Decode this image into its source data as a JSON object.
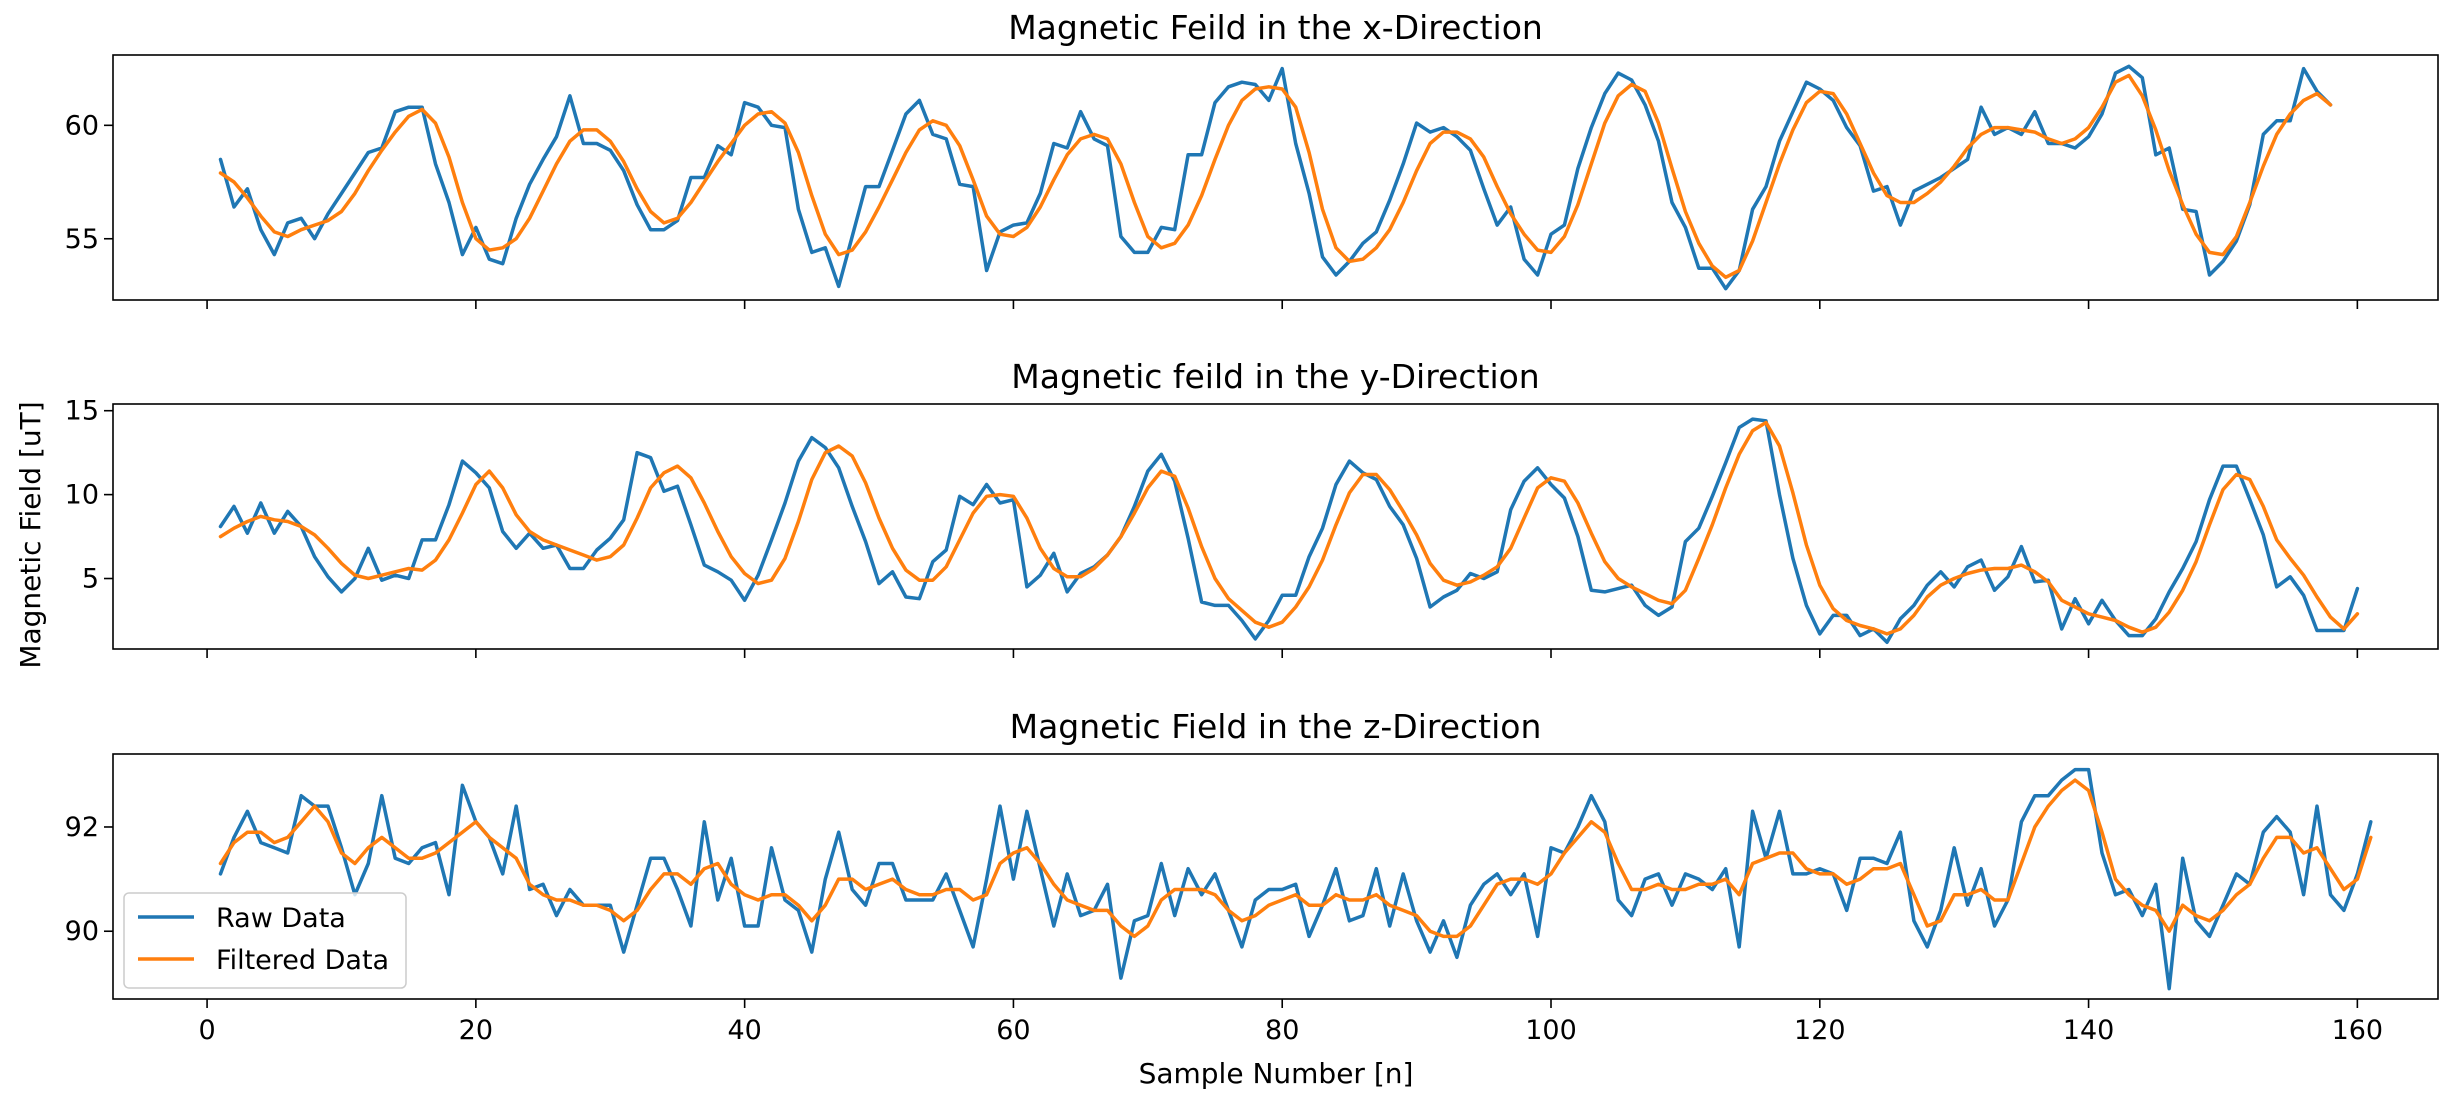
{
  "figure": {
    "ylabel": "Magnetic Field [uT]",
    "xlabel": "Sample Number [n]",
    "raw_color": "#1f77b4",
    "filtered_color": "#ff7f0e"
  },
  "legend": {
    "location": "lower-left of bottom panel",
    "entries": [
      "Raw Data",
      "Filtered Data"
    ]
  },
  "chart_data": [
    {
      "type": "line",
      "title": "Magnetic Feild in the x-Direction",
      "xlim": [
        -7,
        166
      ],
      "ylim": [
        52.3,
        63.1
      ],
      "xticks": [
        0,
        20,
        40,
        60,
        80,
        100,
        120,
        140,
        160
      ],
      "xtick_labels": [
        "",
        "",
        "",
        "",
        "",
        "",
        "",
        "",
        ""
      ],
      "yticks": [
        55,
        60
      ],
      "ytick_labels": [
        "55",
        "60"
      ],
      "x_start": 1,
      "series": [
        {
          "name": "Raw Data",
          "color": "#1f77b4",
          "values": [
            58.5,
            56.4,
            57.2,
            55.4,
            54.3,
            55.7,
            55.9,
            55.0,
            56.1,
            57.0,
            57.9,
            58.8,
            59.0,
            60.6,
            60.8,
            60.8,
            58.3,
            56.6,
            54.3,
            55.5,
            54.1,
            53.9,
            55.9,
            57.4,
            58.5,
            59.5,
            61.3,
            59.2,
            59.2,
            58.9,
            58.0,
            56.5,
            55.4,
            55.4,
            55.8,
            57.7,
            57.7,
            59.1,
            58.7,
            61.0,
            60.8,
            60.0,
            59.9,
            56.3,
            54.4,
            54.6,
            52.9,
            55.1,
            57.3,
            57.3,
            58.9,
            60.5,
            61.1,
            59.6,
            59.4,
            57.4,
            57.3,
            53.6,
            55.3,
            55.6,
            55.7,
            57.0,
            59.2,
            59.0,
            60.6,
            59.4,
            59.1,
            55.1,
            54.4,
            54.4,
            55.5,
            55.4,
            58.7,
            58.7,
            61.0,
            61.7,
            61.9,
            61.8,
            61.1,
            62.5,
            59.2,
            57.0,
            54.2,
            53.4,
            54.0,
            54.8,
            55.3,
            56.7,
            58.3,
            60.1,
            59.7,
            59.9,
            59.5,
            58.9,
            57.2,
            55.6,
            56.4,
            54.1,
            53.4,
            55.2,
            55.6,
            58.1,
            59.9,
            61.4,
            62.3,
            62.0,
            60.9,
            59.3,
            56.6,
            55.5,
            53.7,
            53.7,
            52.8,
            53.6,
            56.3,
            57.3,
            59.3,
            60.6,
            61.9,
            61.6,
            61.1,
            59.9,
            59.1,
            57.1,
            57.3,
            55.6,
            57.1,
            57.4,
            57.7,
            58.1,
            58.5,
            60.8,
            59.6,
            59.9,
            59.6,
            60.6,
            59.2,
            59.2,
            59.0,
            59.5,
            60.5,
            62.3,
            62.6,
            62.1,
            58.7,
            59.0,
            56.3,
            56.2,
            53.4,
            54.0,
            54.9,
            56.5,
            59.6,
            60.2,
            60.2,
            62.5,
            61.5,
            60.9
          ]
        },
        {
          "name": "Filtered Data",
          "color": "#ff7f0e",
          "values": [
            57.9,
            57.5,
            56.8,
            56.0,
            55.3,
            55.1,
            55.4,
            55.6,
            55.8,
            56.2,
            57.0,
            58.0,
            58.9,
            59.7,
            60.4,
            60.7,
            60.1,
            58.6,
            56.6,
            55.0,
            54.5,
            54.6,
            55.0,
            55.9,
            57.1,
            58.3,
            59.3,
            59.8,
            59.8,
            59.3,
            58.4,
            57.2,
            56.2,
            55.7,
            55.9,
            56.6,
            57.5,
            58.4,
            59.2,
            60.0,
            60.5,
            60.6,
            60.1,
            58.8,
            56.9,
            55.2,
            54.3,
            54.5,
            55.3,
            56.4,
            57.6,
            58.8,
            59.8,
            60.2,
            60.0,
            59.1,
            57.6,
            56.0,
            55.2,
            55.1,
            55.5,
            56.4,
            57.6,
            58.7,
            59.4,
            59.6,
            59.4,
            58.3,
            56.6,
            55.1,
            54.6,
            54.8,
            55.6,
            56.9,
            58.5,
            60.0,
            61.1,
            61.6,
            61.7,
            61.6,
            60.8,
            58.8,
            56.3,
            54.6,
            54.0,
            54.1,
            54.6,
            55.4,
            56.6,
            58.0,
            59.2,
            59.7,
            59.7,
            59.4,
            58.6,
            57.3,
            56.1,
            55.2,
            54.5,
            54.4,
            55.1,
            56.5,
            58.3,
            60.1,
            61.3,
            61.8,
            61.5,
            60.1,
            58.1,
            56.2,
            54.8,
            53.8,
            53.3,
            53.6,
            54.9,
            56.6,
            58.3,
            59.8,
            61.0,
            61.5,
            61.4,
            60.5,
            59.2,
            57.9,
            56.9,
            56.6,
            56.6,
            57.0,
            57.5,
            58.2,
            59.0,
            59.6,
            59.9,
            59.9,
            59.8,
            59.7,
            59.4,
            59.2,
            59.4,
            59.9,
            60.8,
            61.9,
            62.2,
            61.3,
            59.8,
            58.0,
            56.5,
            55.2,
            54.4,
            54.3,
            55.1,
            56.6,
            58.2,
            59.6,
            60.5,
            61.1,
            61.4,
            60.9
          ]
        }
      ]
    },
    {
      "type": "line",
      "title": "Magnetic feild in the y-Direction",
      "xlim": [
        -7,
        166
      ],
      "ylim": [
        0.8,
        15.4
      ],
      "xticks": [
        0,
        20,
        40,
        60,
        80,
        100,
        120,
        140,
        160
      ],
      "xtick_labels": [
        "",
        "",
        "",
        "",
        "",
        "",
        "",
        "",
        ""
      ],
      "yticks": [
        5,
        10,
        15
      ],
      "ytick_labels": [
        "5",
        "10",
        "15"
      ],
      "x_start": 1,
      "series": [
        {
          "name": "Raw Data",
          "color": "#1f77b4",
          "values": [
            8.1,
            9.3,
            7.7,
            9.5,
            7.7,
            9.0,
            8.1,
            6.3,
            5.1,
            4.2,
            5.0,
            6.8,
            4.9,
            5.2,
            5.0,
            7.3,
            7.3,
            9.4,
            12.0,
            11.3,
            10.4,
            7.8,
            6.8,
            7.7,
            6.8,
            7.0,
            5.6,
            5.6,
            6.7,
            7.4,
            8.5,
            12.5,
            12.2,
            10.2,
            10.5,
            8.2,
            5.8,
            5.4,
            4.9,
            3.7,
            5.2,
            7.3,
            9.5,
            12.0,
            13.4,
            12.8,
            11.6,
            9.3,
            7.2,
            4.7,
            5.4,
            3.9,
            3.8,
            6.0,
            6.7,
            9.9,
            9.4,
            10.6,
            9.5,
            9.7,
            4.5,
            5.2,
            6.5,
            4.2,
            5.3,
            5.7,
            6.4,
            7.5,
            9.3,
            11.4,
            12.4,
            10.8,
            7.4,
            3.6,
            3.4,
            3.4,
            2.5,
            1.4,
            2.5,
            4.0,
            4.0,
            6.3,
            8.0,
            10.6,
            12.0,
            11.3,
            10.9,
            9.3,
            8.2,
            6.2,
            3.3,
            3.9,
            4.3,
            5.3,
            5.0,
            5.4,
            9.1,
            10.8,
            11.6,
            10.6,
            9.8,
            7.5,
            4.3,
            4.2,
            4.4,
            4.6,
            3.4,
            2.8,
            3.3,
            7.2,
            8.0,
            9.9,
            11.9,
            14.0,
            14.5,
            14.4,
            10.0,
            6.2,
            3.4,
            1.7,
            2.8,
            2.8,
            1.6,
            2.0,
            1.2,
            2.6,
            3.4,
            4.6,
            5.4,
            4.5,
            5.7,
            6.1,
            4.3,
            5.1,
            6.9,
            4.8,
            4.9,
            2.0,
            3.8,
            2.3,
            3.7,
            2.5,
            1.6,
            1.6,
            2.6,
            4.2,
            5.6,
            7.2,
            9.7,
            11.7,
            11.7,
            9.7,
            7.6,
            4.5,
            5.1,
            4.0,
            1.9,
            1.9,
            1.9,
            4.4
          ]
        },
        {
          "name": "Filtered Data",
          "color": "#ff7f0e",
          "values": [
            7.5,
            8.0,
            8.4,
            8.7,
            8.5,
            8.4,
            8.1,
            7.6,
            6.8,
            5.9,
            5.2,
            5.0,
            5.2,
            5.4,
            5.6,
            5.5,
            6.1,
            7.3,
            8.9,
            10.6,
            11.4,
            10.4,
            8.8,
            7.8,
            7.3,
            7.0,
            6.7,
            6.4,
            6.1,
            6.3,
            7.0,
            8.6,
            10.4,
            11.3,
            11.7,
            11.0,
            9.5,
            7.8,
            6.3,
            5.3,
            4.7,
            4.9,
            6.2,
            8.4,
            10.9,
            12.5,
            12.9,
            12.3,
            10.7,
            8.6,
            6.8,
            5.5,
            4.9,
            4.9,
            5.7,
            7.3,
            8.9,
            9.9,
            10.0,
            9.9,
            8.6,
            6.8,
            5.6,
            5.1,
            5.1,
            5.6,
            6.4,
            7.5,
            8.9,
            10.4,
            11.4,
            11.1,
            9.2,
            6.9,
            5.0,
            3.8,
            3.1,
            2.4,
            2.1,
            2.4,
            3.3,
            4.5,
            6.1,
            8.2,
            10.1,
            11.2,
            11.2,
            10.3,
            9.0,
            7.6,
            5.9,
            4.9,
            4.6,
            4.8,
            5.2,
            5.7,
            6.8,
            8.6,
            10.4,
            11.0,
            10.8,
            9.5,
            7.7,
            6.0,
            5.0,
            4.5,
            4.1,
            3.7,
            3.5,
            4.3,
            6.2,
            8.2,
            10.4,
            12.4,
            13.8,
            14.3,
            12.9,
            10.1,
            7.0,
            4.6,
            3.2,
            2.5,
            2.2,
            2.0,
            1.7,
            2.0,
            2.8,
            3.9,
            4.6,
            5.0,
            5.3,
            5.5,
            5.6,
            5.6,
            5.8,
            5.4,
            4.8,
            3.7,
            3.3,
            2.9,
            2.7,
            2.5,
            2.1,
            1.8,
            2.1,
            3.0,
            4.3,
            6.0,
            8.2,
            10.3,
            11.2,
            10.9,
            9.3,
            7.3,
            6.2,
            5.2,
            3.9,
            2.7,
            2.0,
            2.9
          ]
        }
      ]
    },
    {
      "type": "line",
      "title": "Magnetic Field in the z-Direction",
      "xlim": [
        -7,
        166
      ],
      "ylim": [
        88.7,
        93.4
      ],
      "xticks": [
        0,
        20,
        40,
        60,
        80,
        100,
        120,
        140,
        160
      ],
      "xtick_labels": [
        "0",
        "20",
        "40",
        "60",
        "80",
        "100",
        "120",
        "140",
        "160"
      ],
      "yticks": [
        90,
        92
      ],
      "ytick_labels": [
        "90",
        "92"
      ],
      "x_start": 1,
      "series": [
        {
          "name": "Raw Data",
          "color": "#1f77b4",
          "values": [
            91.1,
            91.8,
            92.3,
            91.7,
            91.6,
            91.5,
            92.6,
            92.4,
            92.4,
            91.6,
            90.7,
            91.3,
            92.6,
            91.4,
            91.3,
            91.6,
            91.7,
            90.7,
            92.8,
            92.1,
            91.8,
            91.1,
            92.4,
            90.8,
            90.9,
            90.3,
            90.8,
            90.5,
            90.5,
            90.5,
            89.6,
            90.5,
            91.4,
            91.4,
            90.8,
            90.1,
            92.1,
            90.6,
            91.4,
            90.1,
            90.1,
            91.6,
            90.6,
            90.4,
            89.6,
            91.0,
            91.9,
            90.8,
            90.5,
            91.3,
            91.3,
            90.6,
            90.6,
            90.6,
            91.1,
            90.4,
            89.7,
            91.0,
            92.4,
            91.0,
            92.3,
            91.2,
            90.1,
            91.1,
            90.3,
            90.4,
            90.9,
            89.1,
            90.2,
            90.3,
            91.3,
            90.3,
            91.2,
            90.7,
            91.1,
            90.4,
            89.7,
            90.6,
            90.8,
            90.8,
            90.9,
            89.9,
            90.5,
            91.2,
            90.2,
            90.3,
            91.2,
            90.1,
            91.1,
            90.2,
            89.6,
            90.2,
            89.5,
            90.5,
            90.9,
            91.1,
            90.7,
            91.1,
            89.9,
            91.6,
            91.5,
            92.0,
            92.6,
            92.1,
            90.6,
            90.3,
            91.0,
            91.1,
            90.5,
            91.1,
            91.0,
            90.8,
            91.2,
            89.7,
            92.3,
            91.4,
            92.3,
            91.1,
            91.1,
            91.2,
            91.1,
            90.4,
            91.4,
            91.4,
            91.3,
            91.9,
            90.2,
            89.7,
            90.4,
            91.6,
            90.5,
            91.2,
            90.1,
            90.6,
            92.1,
            92.6,
            92.6,
            92.9,
            93.1,
            93.1,
            91.5,
            90.7,
            90.8,
            90.3,
            90.9,
            88.9,
            91.4,
            90.2,
            89.9,
            90.5,
            91.1,
            90.9,
            91.9,
            92.2,
            91.9,
            90.7,
            92.4,
            90.7,
            90.4,
            91.1,
            92.1
          ]
        },
        {
          "name": "Filtered Data",
          "color": "#ff7f0e",
          "values": [
            91.3,
            91.7,
            91.9,
            91.9,
            91.7,
            91.8,
            92.1,
            92.4,
            92.1,
            91.5,
            91.3,
            91.6,
            91.8,
            91.6,
            91.4,
            91.4,
            91.5,
            91.7,
            91.9,
            92.1,
            91.8,
            91.6,
            91.4,
            90.9,
            90.7,
            90.6,
            90.6,
            90.5,
            90.5,
            90.4,
            90.2,
            90.4,
            90.8,
            91.1,
            91.1,
            90.9,
            91.2,
            91.3,
            90.9,
            90.7,
            90.6,
            90.7,
            90.7,
            90.5,
            90.2,
            90.5,
            91.0,
            91.0,
            90.8,
            90.9,
            91.0,
            90.8,
            90.7,
            90.7,
            90.8,
            90.8,
            90.6,
            90.7,
            91.3,
            91.5,
            91.6,
            91.3,
            90.9,
            90.6,
            90.5,
            90.4,
            90.4,
            90.1,
            89.9,
            90.1,
            90.6,
            90.8,
            90.8,
            90.8,
            90.7,
            90.4,
            90.2,
            90.3,
            90.5,
            90.6,
            90.7,
            90.5,
            90.5,
            90.7,
            90.6,
            90.6,
            90.7,
            90.5,
            90.4,
            90.3,
            90.0,
            89.9,
            89.9,
            90.1,
            90.5,
            90.9,
            91.0,
            91.0,
            90.9,
            91.1,
            91.5,
            91.8,
            92.1,
            91.9,
            91.3,
            90.8,
            90.8,
            90.9,
            90.8,
            90.8,
            90.9,
            90.9,
            91.0,
            90.7,
            91.3,
            91.4,
            91.5,
            91.5,
            91.2,
            91.1,
            91.1,
            90.9,
            91.0,
            91.2,
            91.2,
            91.3,
            90.7,
            90.1,
            90.2,
            90.7,
            90.7,
            90.8,
            90.6,
            90.6,
            91.3,
            92.0,
            92.4,
            92.7,
            92.9,
            92.7,
            91.9,
            91.0,
            90.7,
            90.5,
            90.4,
            90.0,
            90.5,
            90.3,
            90.2,
            90.4,
            90.7,
            90.9,
            91.4,
            91.8,
            91.8,
            91.5,
            91.6,
            91.2,
            90.8,
            91.0,
            91.8
          ]
        }
      ]
    }
  ]
}
